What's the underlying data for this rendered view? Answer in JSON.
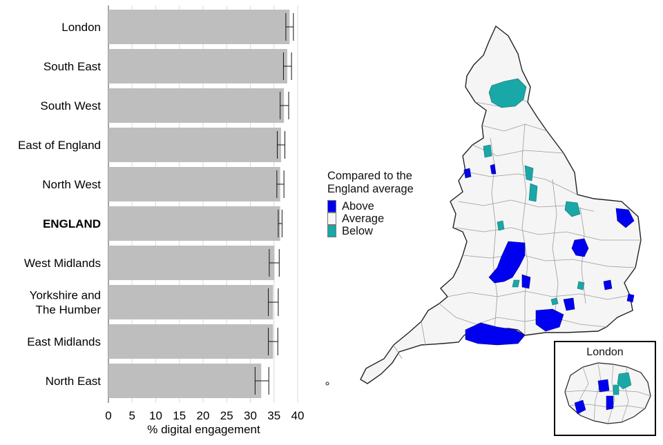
{
  "chart_data": {
    "type": "bar",
    "orientation": "horizontal",
    "xlabel": "% digital engagement",
    "xlim": [
      0,
      40
    ],
    "xticks": [
      0,
      5,
      10,
      15,
      20,
      25,
      30,
      35,
      40
    ],
    "categories": [
      "London",
      "South East",
      "South West",
      "East of England",
      "North West",
      "ENGLAND",
      "West Midlands",
      "Yorkshire and The Humber",
      "East Midlands",
      "North East"
    ],
    "category_labels": [
      "London",
      "South East",
      "South West",
      "East of England",
      "North West",
      "ENGLAND",
      "West Midlands",
      "Yorkshire and\nThe Humber",
      "East Midlands",
      "North East"
    ],
    "bold_categories": [
      "ENGLAND"
    ],
    "values": [
      38.3,
      37.8,
      37.1,
      36.5,
      36.3,
      36.3,
      35.1,
      34.8,
      34.8,
      32.3
    ],
    "error_low": [
      37.5,
      37.0,
      36.3,
      35.7,
      35.6,
      35.9,
      34.0,
      33.8,
      33.8,
      31.0
    ],
    "error_high": [
      39.1,
      38.7,
      38.1,
      37.3,
      37.1,
      36.7,
      36.1,
      35.9,
      35.8,
      33.9
    ],
    "bar_color": "#bebebe",
    "grid": true
  },
  "map": {
    "legend_title": "Compared to the\nEngland average",
    "legend": [
      {
        "label": "Above",
        "color": "#0000f0"
      },
      {
        "label": "Average",
        "color": "#f7f7f7"
      },
      {
        "label": "Below",
        "color": "#1aa7a7"
      }
    ],
    "inset_title": "London"
  }
}
